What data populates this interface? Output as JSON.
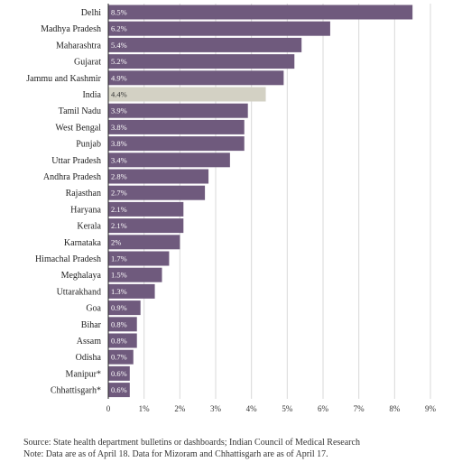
{
  "chart_data": {
    "type": "bar",
    "orientation": "horizontal",
    "categories": [
      "Delhi",
      "Madhya Pradesh",
      "Maharashtra",
      "Gujarat",
      "Jammu and Kashmir",
      "India",
      "Tamil Nadu",
      "West Bengal",
      "Punjab",
      "Uttar Pradesh",
      "Andhra Pradesh",
      "Rajasthan",
      "Haryana",
      "Kerala",
      "Karnataka",
      "Himachal Pradesh",
      "Meghalaya",
      "Uttarakhand",
      "Goa",
      "Bihar",
      "Assam",
      "Odisha",
      "Manipur*",
      "Chhattisgarh*"
    ],
    "values": [
      8.5,
      6.2,
      5.4,
      5.2,
      4.9,
      4.4,
      3.9,
      3.8,
      3.8,
      3.4,
      2.8,
      2.7,
      2.1,
      2.1,
      2.0,
      1.7,
      1.5,
      1.3,
      0.9,
      0.8,
      0.8,
      0.7,
      0.6,
      0.6
    ],
    "value_labels": [
      "8.5%",
      "6.2%",
      "5.4%",
      "5.2%",
      "4.9%",
      "4.4%",
      "3.9%",
      "3.8%",
      "3.8%",
      "3.4%",
      "2.8%",
      "2.7%",
      "2.1%",
      "2.1%",
      "2%",
      "1.7%",
      "1.5%",
      "1.3%",
      "0.9%",
      "0.8%",
      "0.8%",
      "0.7%",
      "0.6%",
      "0.6%"
    ],
    "highlight": "India",
    "xlim": [
      0,
      9
    ],
    "x_ticks": [
      "0",
      "1%",
      "2%",
      "3%",
      "4%",
      "5%",
      "6%",
      "7%",
      "8%",
      "9%"
    ],
    "grid": true,
    "title": "",
    "xlabel": "",
    "ylabel": "",
    "colors": {
      "bar": "#6f5a7d",
      "bar_highlight": "#d3d1c4",
      "bar_label": "#ffffff",
      "bar_label_highlight": "#333333",
      "grid": "#d9d9d9",
      "axis": "#222222"
    }
  },
  "notes": {
    "source": "Source: State health department bulletins or dashboards; Indian Council of Medical Research",
    "data_note": "Note: Data are as of April 18. Data for Mizoram and Chhattisgarh are as of April 17."
  }
}
